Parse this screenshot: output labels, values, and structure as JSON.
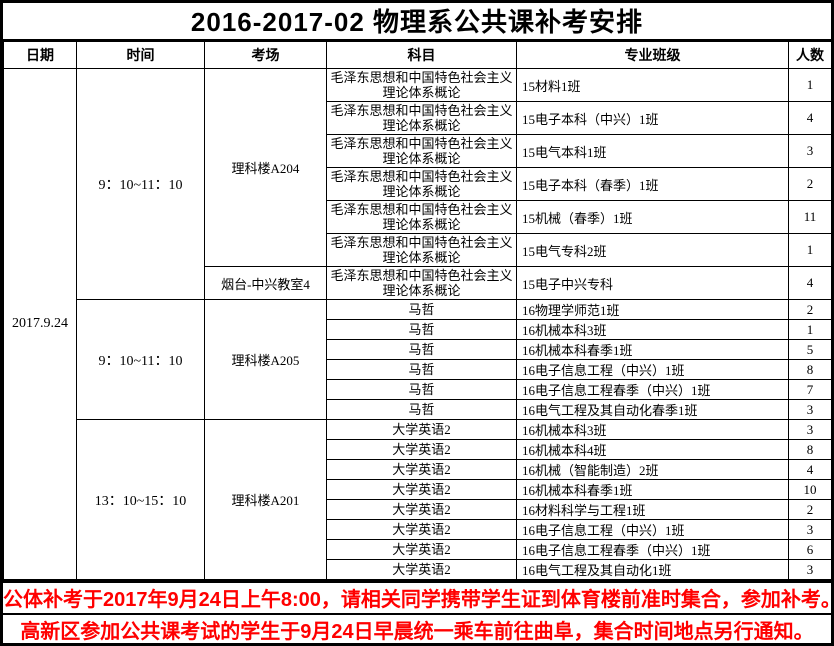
{
  "title": "2016-2017-02 物理系公共课补考安排",
  "accent_colors": {
    "notice_text": "#ff0000",
    "border": "#000000",
    "background": "#ffffff"
  },
  "table": {
    "headers": [
      "日期",
      "时间",
      "考场",
      "科目",
      "专业班级",
      "人数"
    ],
    "date": "2017.9.24",
    "sessions": [
      {
        "time": "9：10~11：10",
        "rooms": [
          {
            "room": "理科楼A204",
            "rows": [
              {
                "subject": "毛泽东思想和中国特色社会主义理论体系概论",
                "class": "15材料1班",
                "count": "1"
              },
              {
                "subject": "毛泽东思想和中国特色社会主义理论体系概论",
                "class": "15电子本科（中兴）1班",
                "count": "4"
              },
              {
                "subject": "毛泽东思想和中国特色社会主义理论体系概论",
                "class": "15电气本科1班",
                "count": "3"
              },
              {
                "subject": "毛泽东思想和中国特色社会主义理论体系概论",
                "class": "15电子本科（春季）1班",
                "count": "2"
              },
              {
                "subject": "毛泽东思想和中国特色社会主义理论体系概论",
                "class": "15机械（春季）1班",
                "count": "11"
              },
              {
                "subject": "毛泽东思想和中国特色社会主义理论体系概论",
                "class": "15电气专科2班",
                "count": "1"
              }
            ]
          },
          {
            "room": "烟台-中兴教室4",
            "rows": [
              {
                "subject": "毛泽东思想和中国特色社会主义理论体系概论",
                "class": "15电子中兴专科",
                "count": "4"
              }
            ]
          }
        ]
      },
      {
        "time": "9：10~11：10",
        "rooms": [
          {
            "room": "理科楼A205",
            "rows": [
              {
                "subject": "马哲",
                "class": "16物理学师范1班",
                "count": "2"
              },
              {
                "subject": "马哲",
                "class": "16机械本科3班",
                "count": "1"
              },
              {
                "subject": "马哲",
                "class": "16机械本科春季1班",
                "count": "5"
              },
              {
                "subject": "马哲",
                "class": "16电子信息工程（中兴）1班",
                "count": "8"
              },
              {
                "subject": "马哲",
                "class": "16电子信息工程春季（中兴）1班",
                "count": "7"
              },
              {
                "subject": "马哲",
                "class": "16电气工程及其自动化春季1班",
                "count": "3"
              }
            ]
          }
        ]
      },
      {
        "time": "13：10~15：10",
        "rooms": [
          {
            "room": "理科楼A201",
            "rows": [
              {
                "subject": "大学英语2",
                "class": "16机械本科3班",
                "count": "3"
              },
              {
                "subject": "大学英语2",
                "class": "16机械本科4班",
                "count": "8"
              },
              {
                "subject": "大学英语2",
                "class": "16机械（智能制造）2班",
                "count": "4"
              },
              {
                "subject": "大学英语2",
                "class": "16机械本科春季1班",
                "count": "10"
              },
              {
                "subject": "大学英语2",
                "class": "16材料科学与工程1班",
                "count": "2"
              },
              {
                "subject": "大学英语2",
                "class": "16电子信息工程（中兴）1班",
                "count": "3"
              },
              {
                "subject": "大学英语2",
                "class": "16电子信息工程春季（中兴）1班",
                "count": "6"
              },
              {
                "subject": "大学英语2",
                "class": "16电气工程及其自动化1班",
                "count": "3"
              }
            ]
          }
        ]
      }
    ]
  },
  "notices": [
    {
      "text": "公体补考于2017年9月24日上午8:00，请相关同学携带学生证到体育楼前准时集合，参加补考。"
    },
    {
      "text": "高新区参加公共课考试的学生于9月24日早晨统一乘车前往曲阜，集合时间地点另行通知。"
    }
  ]
}
